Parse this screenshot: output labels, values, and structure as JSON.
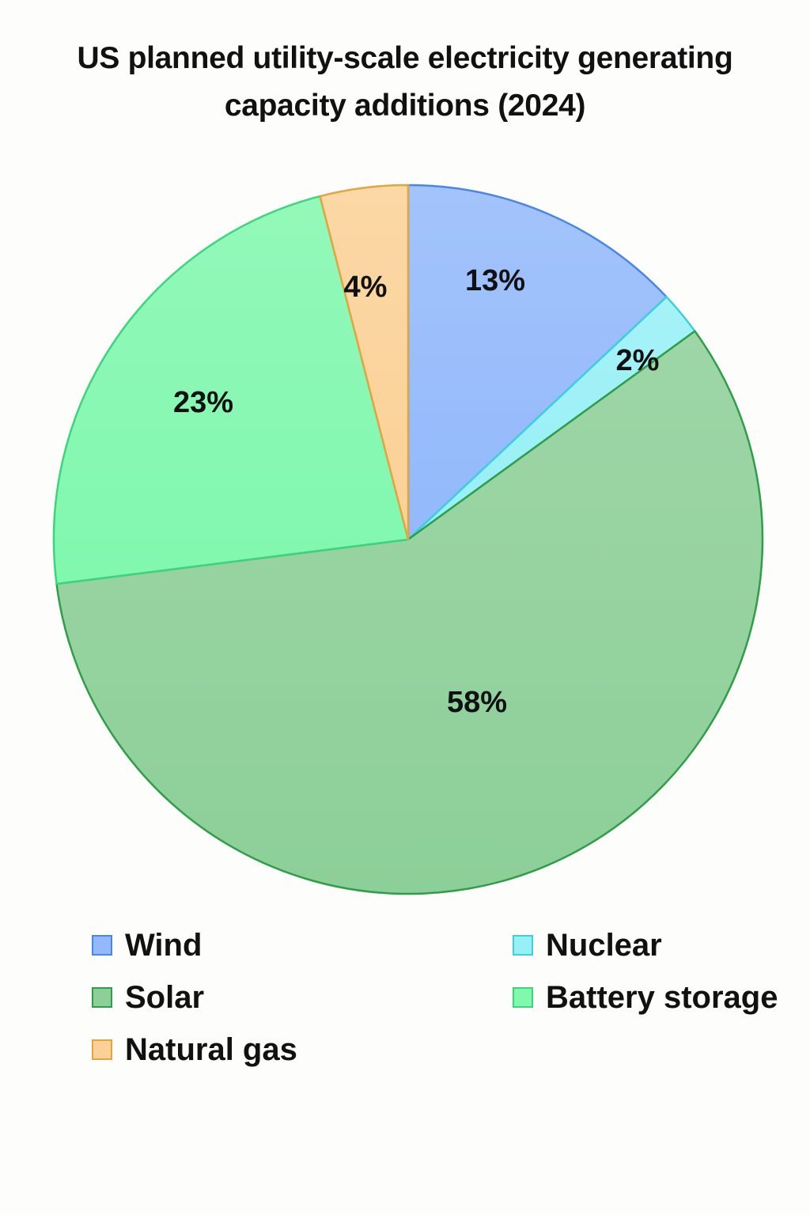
{
  "chart_data": {
    "type": "pie",
    "title_lines": [
      "US planned utility-scale electricity generating",
      "capacity additions (2024)"
    ],
    "slices": [
      {
        "name": "Wind",
        "value": 13,
        "label": "13%",
        "fill": "#93b9fb",
        "stroke": "#4a86e8"
      },
      {
        "name": "Nuclear",
        "value": 2,
        "label": "2%",
        "fill": "#96f0f6",
        "stroke": "#3fd0dc"
      },
      {
        "name": "Solar",
        "value": 58,
        "label": "58%",
        "fill": "#8dcf98",
        "stroke": "#2f9e48"
      },
      {
        "name": "Battery storage",
        "value": 23,
        "label": "23%",
        "fill": "#80f8ae",
        "stroke": "#3ed47e"
      },
      {
        "name": "Natural gas",
        "value": 4,
        "label": "4%",
        "fill": "#fbd196",
        "stroke": "#e0a640"
      }
    ],
    "legend_order": [
      "Wind",
      "Nuclear",
      "Solar",
      "Battery storage",
      "Natural gas"
    ],
    "legend_position": "bottom"
  }
}
